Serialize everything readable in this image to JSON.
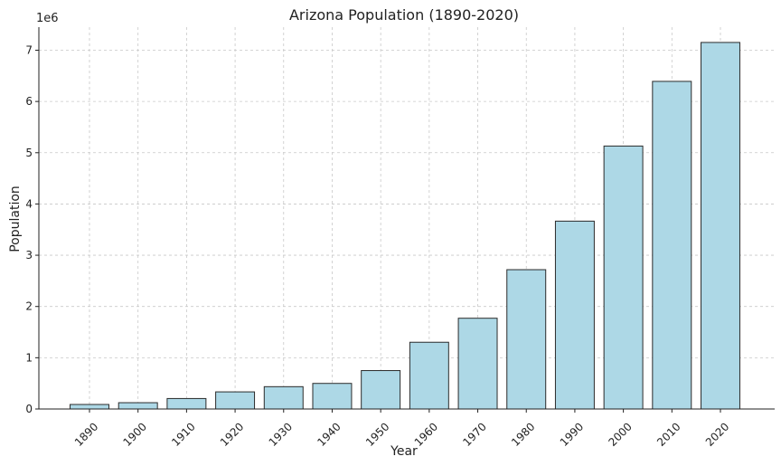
{
  "chart_data": {
    "type": "bar",
    "title": "Arizona Population (1890-2020)",
    "xlabel": "Year",
    "ylabel": "Population",
    "y_offset_label": "1e6",
    "categories": [
      "1890",
      "1900",
      "1910",
      "1920",
      "1930",
      "1940",
      "1950",
      "1960",
      "1970",
      "1980",
      "1990",
      "2000",
      "2010",
      "2020"
    ],
    "values": [
      88243,
      122931,
      204354,
      334162,
      435573,
      499261,
      749587,
      1302161,
      1770900,
      2718215,
      3665228,
      5130632,
      6392017,
      7151502
    ],
    "ylim": [
      0,
      7450000
    ],
    "y_ticks": [
      0,
      1000000,
      2000000,
      3000000,
      4000000,
      5000000,
      6000000,
      7000000
    ],
    "y_tick_labels": [
      "0",
      "1",
      "2",
      "3",
      "4",
      "5",
      "6",
      "7"
    ],
    "bar_color": "#add8e6",
    "bar_edge_color": "#2b2b2b",
    "grid": true,
    "legend": false
  }
}
